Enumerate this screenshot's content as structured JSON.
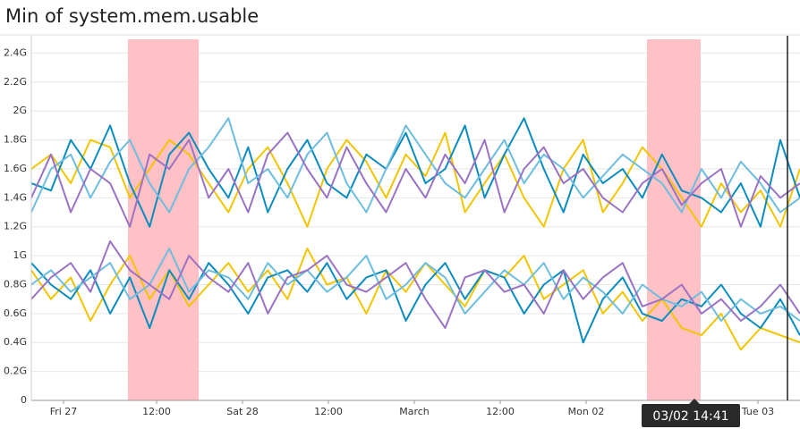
{
  "chart_data": {
    "type": "line",
    "title": "Min of system.mem.usable",
    "ylim": [
      0,
      2.52
    ],
    "yticks": [
      0,
      {
        "value": 0.2,
        "label": "0.2G"
      },
      {
        "value": 0.4,
        "label": "0.4G"
      },
      {
        "value": 0.6,
        "label": "0.6G"
      },
      {
        "value": 0.8,
        "label": "0.8G"
      },
      {
        "value": 1,
        "label": "1G"
      },
      {
        "value": 1.2,
        "label": "1.2G"
      },
      {
        "value": 1.4,
        "label": "1.4G"
      },
      {
        "value": 1.6,
        "label": "1.6G"
      },
      {
        "value": 1.8,
        "label": "1.8G"
      },
      {
        "value": 2,
        "label": "2G"
      },
      {
        "value": 2.2,
        "label": "2.2G"
      },
      {
        "value": 2.4,
        "label": "2.4G"
      }
    ],
    "xtick_labels": [
      "Fri 27",
      "12:00",
      "Sat 28",
      "12:00",
      "March",
      "12:00",
      "Mon 02",
      "Tue 03"
    ],
    "grid": true,
    "tooltip": "03/02 14:41",
    "series": [
      {
        "color": "#f2c500",
        "values": [
          1.6,
          1.7,
          1.5,
          1.8,
          1.75,
          1.4,
          1.6,
          1.8,
          1.7,
          1.5,
          1.3,
          1.6,
          1.75,
          1.5,
          1.2,
          1.6,
          1.8,
          1.65,
          1.4,
          1.7,
          1.55,
          1.85,
          1.3,
          1.5,
          1.7,
          1.4,
          1.2,
          1.6,
          1.8,
          1.3,
          1.5,
          1.75,
          1.6,
          1.4,
          1.2,
          1.5,
          1.3,
          1.45,
          1.2,
          1.6
        ]
      },
      {
        "color": "#0a8cbf",
        "values": [
          1.5,
          1.45,
          1.8,
          1.6,
          1.9,
          1.5,
          1.2,
          1.7,
          1.85,
          1.6,
          1.4,
          1.75,
          1.3,
          1.6,
          1.8,
          1.5,
          1.4,
          1.7,
          1.6,
          1.85,
          1.5,
          1.6,
          1.9,
          1.4,
          1.7,
          1.95,
          1.6,
          1.3,
          1.7,
          1.5,
          1.6,
          1.4,
          1.7,
          1.45,
          1.4,
          1.3,
          1.5,
          1.2,
          1.8,
          1.4
        ]
      },
      {
        "color": "#6cbde0",
        "values": [
          1.3,
          1.6,
          1.7,
          1.4,
          1.65,
          1.8,
          1.5,
          1.3,
          1.6,
          1.75,
          1.95,
          1.5,
          1.6,
          1.4,
          1.7,
          1.85,
          1.5,
          1.3,
          1.6,
          1.9,
          1.7,
          1.5,
          1.4,
          1.6,
          1.8,
          1.5,
          1.7,
          1.6,
          1.4,
          1.55,
          1.7,
          1.6,
          1.5,
          1.3,
          1.6,
          1.4,
          1.65,
          1.5,
          1.3,
          1.4
        ]
      },
      {
        "color": "#9b72c4",
        "values": [
          1.4,
          1.7,
          1.3,
          1.6,
          1.5,
          1.2,
          1.7,
          1.6,
          1.8,
          1.4,
          1.6,
          1.3,
          1.7,
          1.85,
          1.6,
          1.4,
          1.75,
          1.5,
          1.3,
          1.6,
          1.4,
          1.7,
          1.5,
          1.8,
          1.3,
          1.6,
          1.75,
          1.5,
          1.6,
          1.4,
          1.3,
          1.5,
          1.6,
          1.35,
          1.5,
          1.6,
          1.2,
          1.55,
          1.4,
          1.5
        ]
      },
      {
        "color": "#f2c500",
        "values": [
          0.9,
          0.7,
          0.85,
          0.55,
          0.8,
          1.0,
          0.7,
          0.9,
          0.65,
          0.8,
          0.95,
          0.75,
          0.9,
          0.7,
          1.05,
          0.8,
          0.85,
          0.6,
          0.9,
          0.75,
          0.95,
          0.8,
          0.65,
          0.9,
          0.85,
          1.0,
          0.7,
          0.8,
          0.9,
          0.6,
          0.75,
          0.55,
          0.7,
          0.5,
          0.45,
          0.6,
          0.35,
          0.5,
          0.45,
          0.4
        ]
      },
      {
        "color": "#0a8cbf",
        "values": [
          0.95,
          0.8,
          0.7,
          0.9,
          0.6,
          0.85,
          0.5,
          0.9,
          0.7,
          0.95,
          0.8,
          0.6,
          0.85,
          0.9,
          0.75,
          0.95,
          0.7,
          0.85,
          0.9,
          0.55,
          0.8,
          0.95,
          0.7,
          0.9,
          0.85,
          0.6,
          0.8,
          0.9,
          0.4,
          0.7,
          0.85,
          0.6,
          0.55,
          0.7,
          0.65,
          0.8,
          0.6,
          0.5,
          0.7,
          0.45
        ]
      },
      {
        "color": "#6cbde0",
        "values": [
          0.8,
          0.9,
          0.75,
          0.85,
          0.95,
          0.7,
          0.8,
          1.05,
          0.75,
          0.9,
          0.85,
          0.7,
          0.95,
          0.8,
          0.9,
          0.75,
          0.85,
          1.0,
          0.7,
          0.8,
          0.95,
          0.85,
          0.6,
          0.75,
          0.9,
          0.8,
          0.95,
          0.7,
          0.85,
          0.75,
          0.6,
          0.8,
          0.7,
          0.65,
          0.75,
          0.55,
          0.7,
          0.6,
          0.65,
          0.55
        ]
      },
      {
        "color": "#9b72c4",
        "values": [
          0.7,
          0.85,
          0.95,
          0.75,
          1.1,
          0.9,
          0.8,
          0.7,
          1.0,
          0.85,
          0.75,
          0.95,
          0.6,
          0.85,
          0.9,
          1.0,
          0.8,
          0.75,
          0.85,
          0.95,
          0.7,
          0.5,
          0.85,
          0.9,
          0.75,
          0.8,
          0.6,
          0.9,
          0.7,
          0.85,
          0.95,
          0.65,
          0.7,
          0.8,
          0.6,
          0.7,
          0.55,
          0.65,
          0.8,
          0.6
        ]
      }
    ]
  }
}
